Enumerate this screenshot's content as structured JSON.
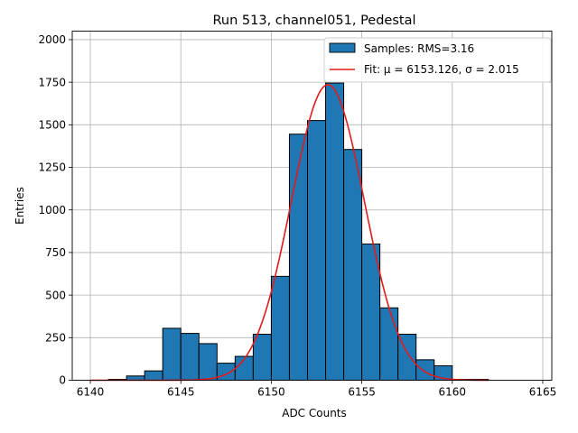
{
  "chart_data": {
    "type": "bar",
    "title": "Run 513, channel051, Pedestal",
    "xlabel": "ADC Counts",
    "ylabel": "Entries",
    "xlim": [
      6139,
      6165.5
    ],
    "ylim": [
      0,
      2050
    ],
    "xticks": [
      6140,
      6145,
      6150,
      6155,
      6160,
      6165
    ],
    "yticks": [
      0,
      250,
      500,
      750,
      1000,
      1250,
      1500,
      1750,
      2000
    ],
    "grid": true,
    "legend_position": "top-right",
    "bin_width": 1,
    "bins": [
      {
        "left": 6140,
        "value": 0
      },
      {
        "left": 6141,
        "value": 5
      },
      {
        "left": 6142,
        "value": 25
      },
      {
        "left": 6143,
        "value": 55
      },
      {
        "left": 6144,
        "value": 305
      },
      {
        "left": 6145,
        "value": 275
      },
      {
        "left": 6146,
        "value": 215
      },
      {
        "left": 6147,
        "value": 100
      },
      {
        "left": 6148,
        "value": 140
      },
      {
        "left": 6149,
        "value": 270
      },
      {
        "left": 6150,
        "value": 610
      },
      {
        "left": 6151,
        "value": 1445
      },
      {
        "left": 6152,
        "value": 1525
      },
      {
        "left": 6153,
        "value": 1745
      },
      {
        "left": 6154,
        "value": 1355
      },
      {
        "left": 6155,
        "value": 800
      },
      {
        "left": 6156,
        "value": 425
      },
      {
        "left": 6157,
        "value": 270
      },
      {
        "left": 6158,
        "value": 120
      },
      {
        "left": 6159,
        "value": 85
      },
      {
        "left": 6160,
        "value": 5
      },
      {
        "left": 6161,
        "value": 5
      }
    ],
    "fit": {
      "type": "gaussian",
      "mu": 6153.126,
      "sigma": 2.015,
      "amplitude": 1735,
      "x_range": [
        6140,
        6162
      ]
    },
    "series": [
      {
        "name": "Samples: RMS=3.16",
        "kind": "histogram",
        "color": "#1f77b4",
        "edge": "#000000"
      },
      {
        "name": "Fit: μ = 6153.126, σ = 2.015",
        "kind": "line",
        "color": "#e31a1c"
      }
    ]
  }
}
